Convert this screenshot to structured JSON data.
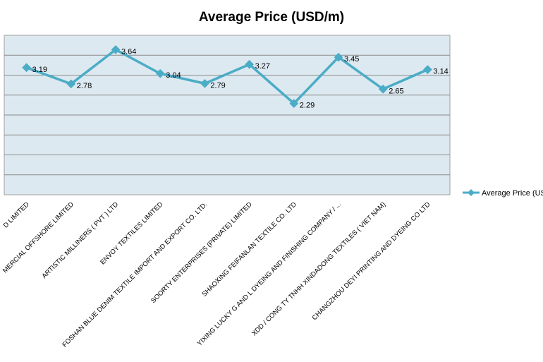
{
  "chart_data": {
    "type": "line",
    "title": "Average Price (USD/m)",
    "categories": [
      "D LIMITED",
      "MERCIAL OFFSHORE LIMITED",
      "ARTISTIC MILLINERS ( PVT ) LTD",
      "ENVOY TEXTILES LIMITED",
      "FOSHAN BLUE DENIM TEXTILE IMPORT AND EXPORT CO. LTD.",
      "SOORTY ENTERPRISES (PRIVATE) LIMITED",
      "SHAOXING FEIFANLAN TEXTILE CO. LTD",
      "YIXING LUCKY G AND L DYEING AND FINISHING COMPANY / ...",
      "XDD / CONG TY TNHH XINDADONG TEXTILES ( VIET NAM)",
      "CHANGZHOU DEYI PRINTING AND DYEING CO LTD"
    ],
    "series": [
      {
        "name": "Average Price (USI",
        "values": [
          3.19,
          2.78,
          3.64,
          3.04,
          2.79,
          3.27,
          2.29,
          3.45,
          2.65,
          3.14
        ],
        "color": "#4bacc6"
      }
    ],
    "data_labels": [
      "3.19",
      "2.78",
      "3.64",
      "3.04",
      "2.79",
      "3.27",
      "2.29",
      "3.45",
      "2.65",
      "3.14"
    ],
    "ylim": [
      0,
      4
    ],
    "gridlines": [
      0,
      0.5,
      1,
      1.5,
      2,
      2.5,
      3,
      3.5,
      4
    ],
    "grid": true,
    "y_tick_labels_visible": false,
    "plot_background": "#dde9f0",
    "legend": "right"
  }
}
